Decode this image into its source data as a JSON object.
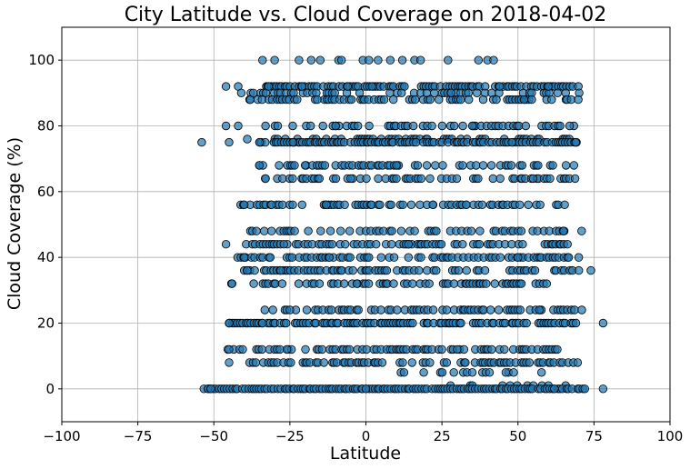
{
  "chart_data": {
    "type": "scatter",
    "title": "City Latitude vs. Cloud Coverage on 2018-04-02",
    "xlabel": "Latitude",
    "ylabel": "Cloud Coverage (%)",
    "xlim": [
      -100,
      100
    ],
    "ylim": [
      -10,
      110
    ],
    "x_ticks": [
      -100,
      -75,
      -50,
      -25,
      0,
      25,
      50,
      75,
      100
    ],
    "y_ticks": [
      0,
      20,
      40,
      60,
      80,
      100
    ],
    "grid": true,
    "marker_color": "#1f77b4",
    "marker_edge_color": "#000000",
    "marker_alpha": 0.7,
    "points": [
      {
        "x": -54,
        "y": 75
      },
      {
        "x": -52,
        "y": 0
      },
      {
        "x": -51,
        "y": 0
      },
      {
        "x": -46,
        "y": 92
      },
      {
        "x": -46,
        "y": 44
      },
      {
        "x": -45,
        "y": 20
      },
      {
        "x": -45,
        "y": 12
      },
      {
        "x": -45,
        "y": 8
      },
      {
        "x": -45,
        "y": 75
      },
      {
        "x": -46,
        "y": 80
      },
      {
        "x": -44,
        "y": 32
      },
      {
        "x": -42,
        "y": 80
      },
      {
        "x": -42,
        "y": 92
      },
      {
        "x": -41,
        "y": 90
      },
      {
        "x": -40,
        "y": 56
      },
      {
        "x": -40,
        "y": 40
      },
      {
        "x": -39,
        "y": 36
      },
      {
        "x": -39,
        "y": 76
      },
      {
        "x": -38,
        "y": 88
      },
      {
        "x": -37,
        "y": 90
      },
      {
        "x": -36,
        "y": 48
      },
      {
        "x": -35,
        "y": 75
      },
      {
        "x": -35,
        "y": 68
      },
      {
        "x": -34,
        "y": 100
      },
      {
        "x": -34,
        "y": 20
      },
      {
        "x": -33,
        "y": 64
      },
      {
        "x": -32,
        "y": 92
      },
      {
        "x": -31,
        "y": 56
      },
      {
        "x": -30,
        "y": 100
      },
      {
        "x": -29,
        "y": 80
      },
      {
        "x": -28,
        "y": 36
      },
      {
        "x": -27,
        "y": 44
      },
      {
        "x": -26,
        "y": 12
      },
      {
        "x": -25,
        "y": 24
      },
      {
        "x": -24,
        "y": 75
      },
      {
        "x": -22,
        "y": 100
      },
      {
        "x": -21,
        "y": 92
      },
      {
        "x": -20,
        "y": 68
      },
      {
        "x": -18,
        "y": 100
      },
      {
        "x": -16,
        "y": 88
      },
      {
        "x": -15,
        "y": 100
      },
      {
        "x": -13,
        "y": 56
      },
      {
        "x": -12,
        "y": 40
      },
      {
        "x": -10,
        "y": 80
      },
      {
        "x": -9,
        "y": 100
      },
      {
        "x": -8,
        "y": 100
      },
      {
        "x": -6,
        "y": 92
      },
      {
        "x": -5,
        "y": 64
      },
      {
        "x": -3,
        "y": 32
      },
      {
        "x": -1,
        "y": 100
      },
      {
        "x": 0,
        "y": 0
      },
      {
        "x": 1,
        "y": 100
      },
      {
        "x": 2,
        "y": 92
      },
      {
        "x": 4,
        "y": 100
      },
      {
        "x": 6,
        "y": 88
      },
      {
        "x": 8,
        "y": 100
      },
      {
        "x": 10,
        "y": 68
      },
      {
        "x": 12,
        "y": 100
      },
      {
        "x": 14,
        "y": 44
      },
      {
        "x": 16,
        "y": 100
      },
      {
        "x": 18,
        "y": 100
      },
      {
        "x": 20,
        "y": 90
      },
      {
        "x": 22,
        "y": 56
      },
      {
        "x": 24,
        "y": 88
      },
      {
        "x": 27,
        "y": 100
      },
      {
        "x": 28,
        "y": 90
      },
      {
        "x": 30,
        "y": 12
      },
      {
        "x": 33,
        "y": 56
      },
      {
        "x": 35,
        "y": 80
      },
      {
        "x": 37,
        "y": 100
      },
      {
        "x": 40,
        "y": 100
      },
      {
        "x": 42,
        "y": 100
      },
      {
        "x": 44,
        "y": 92
      },
      {
        "x": 46,
        "y": 5
      },
      {
        "x": 48,
        "y": 75
      },
      {
        "x": 50,
        "y": 40
      },
      {
        "x": 52,
        "y": 88
      },
      {
        "x": 55,
        "y": 64
      },
      {
        "x": 57,
        "y": 24
      },
      {
        "x": 60,
        "y": 92
      },
      {
        "x": 62,
        "y": 0
      },
      {
        "x": 65,
        "y": 48
      },
      {
        "x": 67,
        "y": 80
      },
      {
        "x": 69,
        "y": 75
      },
      {
        "x": 70,
        "y": 40
      },
      {
        "x": 71,
        "y": 24
      },
      {
        "x": 72,
        "y": 0
      },
      {
        "x": 74,
        "y": 36
      },
      {
        "x": 78,
        "y": 20
      },
      {
        "x": 78,
        "y": 0
      }
    ],
    "dense_bands": [
      {
        "y": 92,
        "x_range": [
          -33,
          70
        ],
        "density": 0.85
      },
      {
        "y": 90,
        "x_range": [
          -38,
          70
        ],
        "density": 0.45
      },
      {
        "y": 88,
        "x_range": [
          -38,
          70
        ],
        "density": 0.55
      },
      {
        "y": 80,
        "x_range": [
          -35,
          70
        ],
        "density": 0.45
      },
      {
        "y": 76,
        "x_range": [
          -30,
          68
        ],
        "density": 0.45
      },
      {
        "y": 75,
        "x_range": [
          -35,
          70
        ],
        "density": 0.85
      },
      {
        "y": 68,
        "x_range": [
          -35,
          70
        ],
        "density": 0.5
      },
      {
        "y": 64,
        "x_range": [
          -33,
          69
        ],
        "density": 0.55
      },
      {
        "y": 56,
        "x_range": [
          -41,
          68
        ],
        "density": 0.6
      },
      {
        "y": 48,
        "x_range": [
          -38,
          72
        ],
        "density": 0.5
      },
      {
        "y": 44,
        "x_range": [
          -40,
          68
        ],
        "density": 0.6
      },
      {
        "y": 40,
        "x_range": [
          -42,
          70
        ],
        "density": 0.55
      },
      {
        "y": 36,
        "x_range": [
          -40,
          74
        ],
        "density": 0.6
      },
      {
        "y": 32,
        "x_range": [
          -44,
          60
        ],
        "density": 0.5
      },
      {
        "y": 24,
        "x_range": [
          -33,
          70
        ],
        "density": 0.55
      },
      {
        "y": 20,
        "x_range": [
          -45,
          70
        ],
        "density": 0.75
      },
      {
        "y": 12,
        "x_range": [
          -46,
          68
        ],
        "density": 0.55
      },
      {
        "y": 8,
        "x_range": [
          -39,
          70
        ],
        "density": 0.6
      },
      {
        "y": 5,
        "x_range": [
          8,
          58
        ],
        "density": 0.3
      },
      {
        "y": 1,
        "x_range": [
          27,
          68
        ],
        "density": 0.35
      },
      {
        "y": 0,
        "x_range": [
          -53,
          72
        ],
        "density": 0.95
      }
    ]
  }
}
